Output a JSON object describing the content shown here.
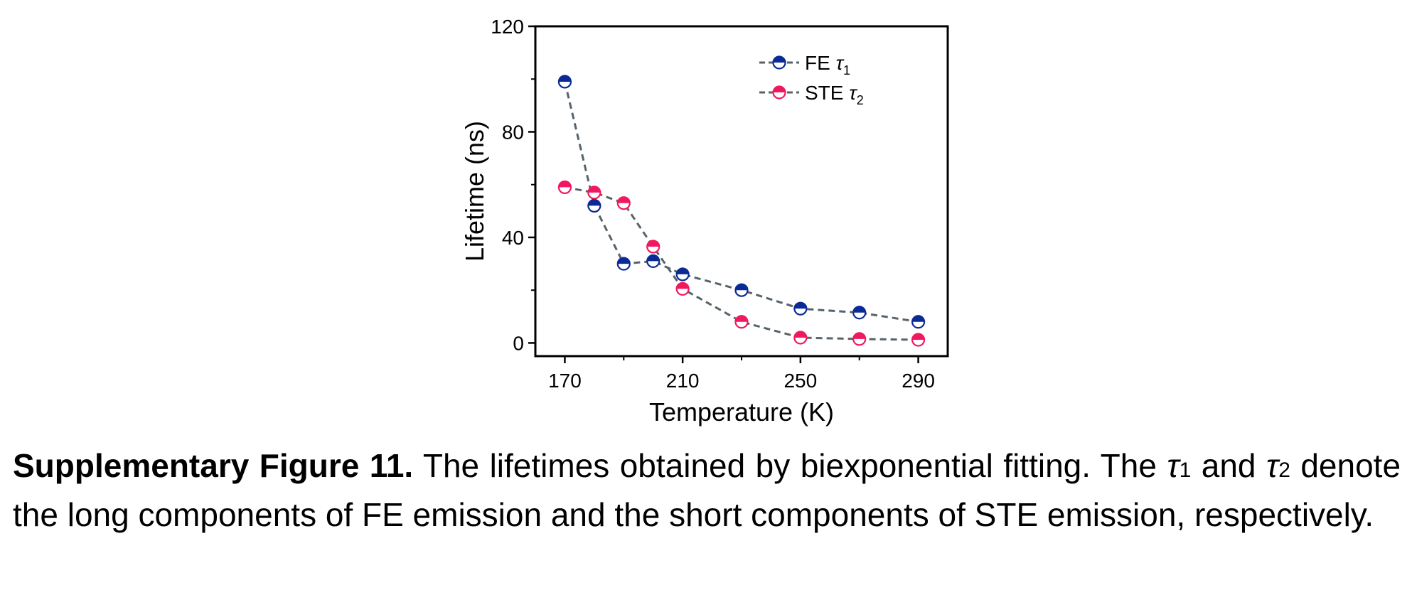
{
  "chart_data": {
    "type": "scatter",
    "xlabel": "Temperature (K)",
    "ylabel": "Lifetime (ns)",
    "xlim": [
      160,
      300
    ],
    "ylim": [
      -5,
      120
    ],
    "xticks": [
      170,
      210,
      250,
      290
    ],
    "xtick_labels": [
      "170",
      "210",
      "250",
      "290"
    ],
    "yticks": [
      0,
      40,
      80,
      120
    ],
    "ytick_labels": [
      "0",
      "40",
      "80",
      "120"
    ],
    "legend_position": "top-right",
    "line_style": "dashed",
    "line_color": "#56636b",
    "series": [
      {
        "name": "FE",
        "symbol": "τ",
        "subscript": "1",
        "color": "#0a2a96",
        "marker": "half-filled-circle-top",
        "x": [
          170,
          180,
          190,
          200,
          210,
          230,
          250,
          270,
          290
        ],
        "y": [
          99,
          52,
          30,
          31,
          26,
          20,
          13,
          11.5,
          8
        ]
      },
      {
        "name": "STE",
        "symbol": "τ",
        "subscript": "2",
        "color": "#f0185e",
        "marker": "half-filled-circle-top",
        "x": [
          170,
          180,
          190,
          200,
          210,
          230,
          250,
          270,
          290
        ],
        "y": [
          59,
          57,
          53,
          36.5,
          20.5,
          8,
          2,
          1.5,
          1.2
        ]
      }
    ]
  },
  "caption": {
    "lead": "Supplementary Figure 11.",
    "part1": "The lifetimes obtained by biexponential fitting. The",
    "tau_symbol": "τ",
    "tau1_sub": "1",
    "and": "and",
    "tau2_sub": "2",
    "part2": "denote the long components of FE emission and the short components of STE emission, respectively."
  }
}
